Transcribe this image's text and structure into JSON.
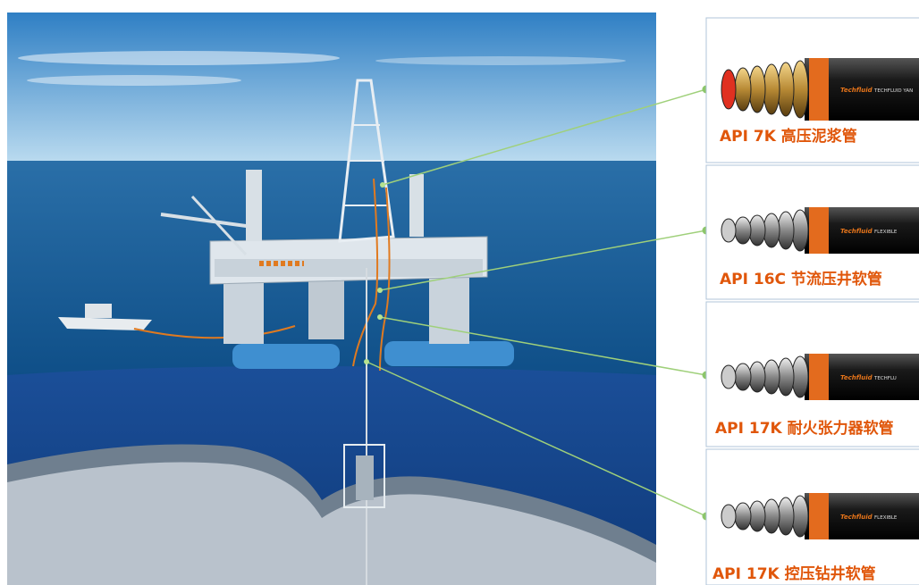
{
  "items": [
    {
      "label": "API 7K 高压泥浆管",
      "brand": "Techfluid",
      "print": "TECHFLUID YAN"
    },
    {
      "label": "API 16C 节流压井软管",
      "brand": "Techfluid",
      "print": "FLEXIBLE"
    },
    {
      "label": "API 17K 耐火张力器软管",
      "brand": "Techfluid",
      "print": "TECHFLU"
    },
    {
      "label": "API 17K 控压钻井软管",
      "brand": "Techfluid",
      "print": "FLEXIBLE"
    }
  ]
}
